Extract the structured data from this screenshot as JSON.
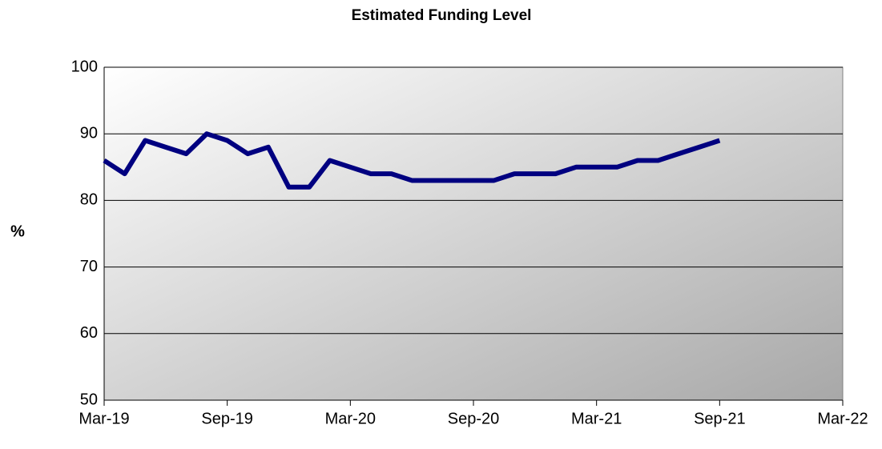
{
  "chart_data": {
    "type": "line",
    "title": "Estimated Funding Level",
    "y_label": "%",
    "x": [
      "Mar-19",
      "Apr-19",
      "May-19",
      "Jun-19",
      "Jul-19",
      "Aug-19",
      "Sep-19",
      "Oct-19",
      "Nov-19",
      "Dec-19",
      "Jan-20",
      "Feb-20",
      "Mar-20",
      "Apr-20",
      "May-20",
      "Jun-20",
      "Jul-20",
      "Aug-20",
      "Sep-20",
      "Oct-20",
      "Nov-20",
      "Dec-20",
      "Jan-21",
      "Feb-21",
      "Mar-21",
      "Apr-21",
      "May-21",
      "Jun-21",
      "Jul-21",
      "Aug-21",
      "Sep-21"
    ],
    "series": [
      {
        "name": "Estimated Funding Level",
        "color": "#000080",
        "values": [
          86,
          84,
          89,
          88,
          87,
          90,
          89,
          87,
          88,
          82,
          82,
          86,
          85,
          84,
          84,
          83,
          83,
          83,
          83,
          83,
          84,
          84,
          84,
          85,
          85,
          85,
          86,
          86,
          87,
          88,
          89
        ]
      }
    ],
    "xlim": [
      "Mar-19",
      "Mar-22"
    ],
    "xticks": [
      "Mar-19",
      "Sep-19",
      "Mar-20",
      "Sep-20",
      "Mar-21",
      "Sep-21",
      "Mar-22"
    ],
    "ylim": [
      50,
      100
    ],
    "yticks": [
      50,
      60,
      70,
      80,
      90,
      100
    ],
    "grid": true
  }
}
